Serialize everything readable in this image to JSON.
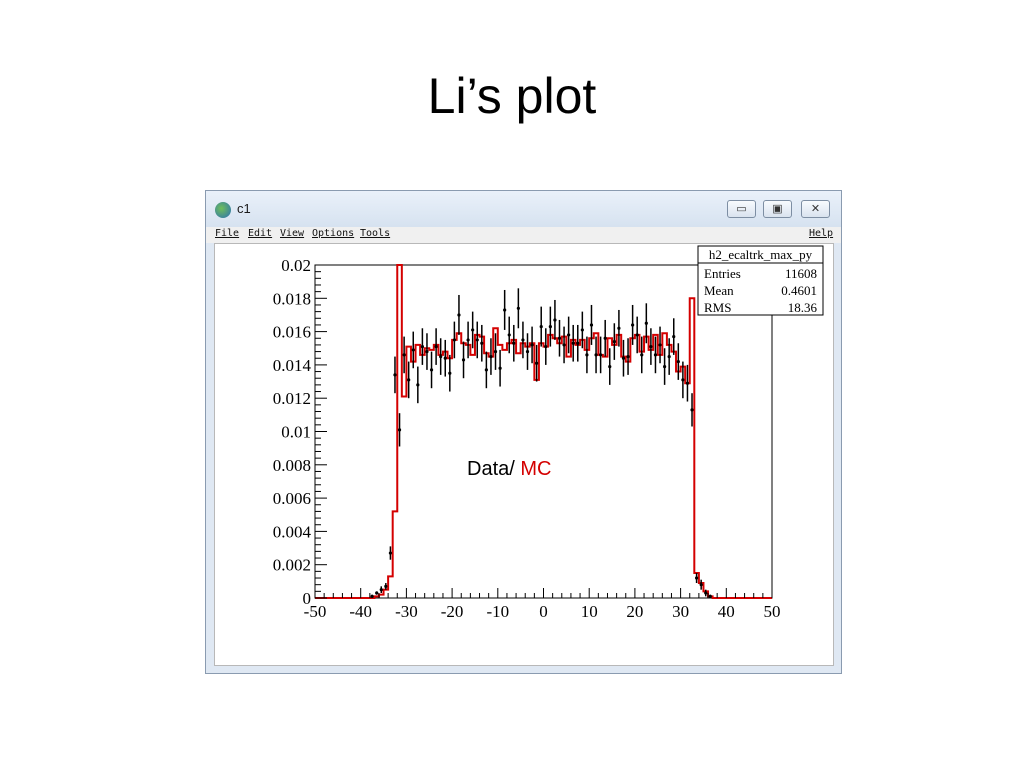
{
  "slide": {
    "title": "Li’s plot"
  },
  "window": {
    "title": "c1",
    "menu": {
      "file": "File",
      "edit": "Edit",
      "view": "View",
      "options": "Options",
      "tools": "Tools",
      "help": "Help"
    },
    "buttons": {
      "minimize": "▭",
      "maximize": "▣",
      "close": "✕"
    }
  },
  "stats_box": {
    "name": "h2_ecaltrk_max_py",
    "rows": [
      {
        "label": "Entries",
        "value": "11608"
      },
      {
        "label": "Mean",
        "value": "0.4601"
      },
      {
        "label": "RMS",
        "value": "18.36"
      }
    ]
  },
  "annotation": {
    "data_label": "Data/",
    "mc_label": "MC"
  },
  "colors": {
    "mc": "#d40000",
    "data": "#000000"
  },
  "chart_data": {
    "type": "line",
    "xlim": [
      -50,
      50
    ],
    "ylim": [
      0,
      0.02
    ],
    "bin_width": 1,
    "x_ticks": [
      "-50",
      "-40",
      "-30",
      "-20",
      "-10",
      "0",
      "10",
      "20",
      "30",
      "40",
      "50"
    ],
    "y_ticks": [
      "0",
      "0.002",
      "0.004",
      "0.006",
      "0.008",
      "0.01",
      "0.012",
      "0.014",
      "0.016",
      "0.018",
      "0.02"
    ],
    "mc_bins": [
      [
        -50,
        0.0
      ],
      [
        -49,
        0.0
      ],
      [
        -48,
        0.0
      ],
      [
        -47,
        0.0
      ],
      [
        -46,
        0.0
      ],
      [
        -45,
        0.0
      ],
      [
        -44,
        0.0
      ],
      [
        -43,
        0.0
      ],
      [
        -42,
        0.0
      ],
      [
        -41,
        0.0
      ],
      [
        -40,
        0.0
      ],
      [
        -39,
        0.0
      ],
      [
        -38,
        0.0
      ],
      [
        -37,
        0.0001
      ],
      [
        -36,
        0.0002
      ],
      [
        -35,
        0.0005
      ],
      [
        -34,
        0.0013
      ],
      [
        -33,
        0.0052
      ],
      [
        -32,
        0.025
      ],
      [
        -31,
        0.0121
      ],
      [
        -30,
        0.0151
      ],
      [
        -29,
        0.0142
      ],
      [
        -28,
        0.0152
      ],
      [
        -27,
        0.0146
      ],
      [
        -26,
        0.015
      ],
      [
        -25,
        0.0149
      ],
      [
        -24,
        0.0152
      ],
      [
        -23,
        0.0146
      ],
      [
        -22,
        0.0148
      ],
      [
        -21,
        0.0144
      ],
      [
        -20,
        0.0155
      ],
      [
        -19,
        0.0159
      ],
      [
        -18,
        0.0153
      ],
      [
        -17,
        0.0152
      ],
      [
        -16,
        0.0146
      ],
      [
        -15,
        0.0158
      ],
      [
        -14,
        0.0157
      ],
      [
        -13,
        0.0147
      ],
      [
        -12,
        0.0145
      ],
      [
        -11,
        0.0162
      ],
      [
        -10,
        0.0152
      ],
      [
        -9,
        0.0149
      ],
      [
        -8,
        0.0153
      ],
      [
        -7,
        0.0155
      ],
      [
        -6,
        0.0147
      ],
      [
        -5,
        0.0153
      ],
      [
        -4,
        0.0151
      ],
      [
        -3,
        0.0153
      ],
      [
        -2,
        0.0131
      ],
      [
        -1,
        0.0153
      ],
      [
        0,
        0.0151
      ],
      [
        1,
        0.0158
      ],
      [
        2,
        0.0156
      ],
      [
        3,
        0.0153
      ],
      [
        4,
        0.0157
      ],
      [
        5,
        0.0145
      ],
      [
        6,
        0.0155
      ],
      [
        7,
        0.0152
      ],
      [
        8,
        0.0155
      ],
      [
        9,
        0.0149
      ],
      [
        10,
        0.0156
      ],
      [
        11,
        0.0159
      ],
      [
        12,
        0.0146
      ],
      [
        13,
        0.0145
      ],
      [
        14,
        0.0156
      ],
      [
        15,
        0.0152
      ],
      [
        16,
        0.0158
      ],
      [
        17,
        0.0145
      ],
      [
        18,
        0.0142
      ],
      [
        19,
        0.0156
      ],
      [
        20,
        0.0158
      ],
      [
        21,
        0.0148
      ],
      [
        22,
        0.0157
      ],
      [
        23,
        0.0149
      ],
      [
        24,
        0.0158
      ],
      [
        25,
        0.0146
      ],
      [
        26,
        0.0159
      ],
      [
        27,
        0.0152
      ],
      [
        28,
        0.0148
      ],
      [
        29,
        0.0136
      ],
      [
        30,
        0.0139
      ],
      [
        31,
        0.0129
      ],
      [
        32,
        0.018
      ],
      [
        33,
        0.0015
      ],
      [
        34,
        0.0009
      ],
      [
        35,
        0.0004
      ],
      [
        36,
        0.0001
      ],
      [
        37,
        0.0
      ],
      [
        38,
        0.0
      ],
      [
        39,
        0.0
      ],
      [
        40,
        0.0
      ],
      [
        41,
        0.0
      ],
      [
        42,
        0.0
      ],
      [
        43,
        0.0
      ],
      [
        44,
        0.0
      ],
      [
        45,
        0.0
      ],
      [
        46,
        0.0
      ],
      [
        47,
        0.0
      ],
      [
        48,
        0.0
      ],
      [
        49,
        0.0
      ]
    ],
    "data_points": [
      {
        "x": -37.5,
        "y": 0.0001,
        "err": 0.0001
      },
      {
        "x": -36.5,
        "y": 0.0003,
        "err": 0.0001
      },
      {
        "x": -35.5,
        "y": 0.0005,
        "err": 0.0002
      },
      {
        "x": -34.5,
        "y": 0.0007,
        "err": 0.0002
      },
      {
        "x": -33.5,
        "y": 0.0027,
        "err": 0.0004
      },
      {
        "x": -32.5,
        "y": 0.0134,
        "err": 0.0011
      },
      {
        "x": -31.5,
        "y": 0.0101,
        "err": 0.001
      },
      {
        "x": -30.5,
        "y": 0.0146,
        "err": 0.0011
      },
      {
        "x": -29.5,
        "y": 0.0131,
        "err": 0.0011
      },
      {
        "x": -28.5,
        "y": 0.0149,
        "err": 0.0011
      },
      {
        "x": -27.5,
        "y": 0.0128,
        "err": 0.0011
      },
      {
        "x": -26.5,
        "y": 0.0151,
        "err": 0.0011
      },
      {
        "x": -25.5,
        "y": 0.0148,
        "err": 0.0011
      },
      {
        "x": -24.5,
        "y": 0.0137,
        "err": 0.0011
      },
      {
        "x": -23.5,
        "y": 0.0151,
        "err": 0.0011
      },
      {
        "x": -22.5,
        "y": 0.0145,
        "err": 0.0011
      },
      {
        "x": -21.5,
        "y": 0.0144,
        "err": 0.0011
      },
      {
        "x": -20.5,
        "y": 0.0135,
        "err": 0.0011
      },
      {
        "x": -19.5,
        "y": 0.0155,
        "err": 0.0011
      },
      {
        "x": -18.5,
        "y": 0.017,
        "err": 0.0012
      },
      {
        "x": -17.5,
        "y": 0.0143,
        "err": 0.0011
      },
      {
        "x": -16.5,
        "y": 0.0155,
        "err": 0.0011
      },
      {
        "x": -15.5,
        "y": 0.0161,
        "err": 0.0011
      },
      {
        "x": -14.5,
        "y": 0.0155,
        "err": 0.0011
      },
      {
        "x": -13.5,
        "y": 0.0153,
        "err": 0.0011
      },
      {
        "x": -12.5,
        "y": 0.0137,
        "err": 0.0011
      },
      {
        "x": -11.5,
        "y": 0.0145,
        "err": 0.0011
      },
      {
        "x": -10.5,
        "y": 0.0148,
        "err": 0.0011
      },
      {
        "x": -9.5,
        "y": 0.0138,
        "err": 0.0011
      },
      {
        "x": -8.5,
        "y": 0.0173,
        "err": 0.0012
      },
      {
        "x": -7.5,
        "y": 0.0158,
        "err": 0.0011
      },
      {
        "x": -6.5,
        "y": 0.0153,
        "err": 0.0011
      },
      {
        "x": -5.5,
        "y": 0.0174,
        "err": 0.0012
      },
      {
        "x": -4.5,
        "y": 0.0155,
        "err": 0.0011
      },
      {
        "x": -3.5,
        "y": 0.0148,
        "err": 0.0011
      },
      {
        "x": -2.5,
        "y": 0.0152,
        "err": 0.0011
      },
      {
        "x": -1.5,
        "y": 0.0141,
        "err": 0.0011
      },
      {
        "x": -0.5,
        "y": 0.0163,
        "err": 0.0012
      },
      {
        "x": 0.5,
        "y": 0.0151,
        "err": 0.0011
      },
      {
        "x": 1.5,
        "y": 0.0163,
        "err": 0.0012
      },
      {
        "x": 2.5,
        "y": 0.0167,
        "err": 0.0012
      },
      {
        "x": 3.5,
        "y": 0.0156,
        "err": 0.0011
      },
      {
        "x": 4.5,
        "y": 0.0152,
        "err": 0.0011
      },
      {
        "x": 5.5,
        "y": 0.0158,
        "err": 0.0011
      },
      {
        "x": 6.5,
        "y": 0.0153,
        "err": 0.0011
      },
      {
        "x": 7.5,
        "y": 0.0153,
        "err": 0.0011
      },
      {
        "x": 8.5,
        "y": 0.0161,
        "err": 0.0011
      },
      {
        "x": 9.5,
        "y": 0.0146,
        "err": 0.0011
      },
      {
        "x": 10.5,
        "y": 0.0164,
        "err": 0.0012
      },
      {
        "x": 11.5,
        "y": 0.0146,
        "err": 0.0011
      },
      {
        "x": 12.5,
        "y": 0.0146,
        "err": 0.0011
      },
      {
        "x": 13.5,
        "y": 0.0156,
        "err": 0.0011
      },
      {
        "x": 14.5,
        "y": 0.0139,
        "err": 0.0011
      },
      {
        "x": 15.5,
        "y": 0.0154,
        "err": 0.0011
      },
      {
        "x": 16.5,
        "y": 0.0162,
        "err": 0.0011
      },
      {
        "x": 17.5,
        "y": 0.0144,
        "err": 0.0011
      },
      {
        "x": 18.5,
        "y": 0.0145,
        "err": 0.0011
      },
      {
        "x": 19.5,
        "y": 0.0164,
        "err": 0.0012
      },
      {
        "x": 20.5,
        "y": 0.0158,
        "err": 0.0011
      },
      {
        "x": 21.5,
        "y": 0.0146,
        "err": 0.0011
      },
      {
        "x": 22.5,
        "y": 0.0165,
        "err": 0.0012
      },
      {
        "x": 23.5,
        "y": 0.0151,
        "err": 0.0011
      },
      {
        "x": 24.5,
        "y": 0.0146,
        "err": 0.0011
      },
      {
        "x": 25.5,
        "y": 0.0152,
        "err": 0.0011
      },
      {
        "x": 26.5,
        "y": 0.0139,
        "err": 0.0011
      },
      {
        "x": 27.5,
        "y": 0.0145,
        "err": 0.0011
      },
      {
        "x": 28.5,
        "y": 0.0157,
        "err": 0.0011
      },
      {
        "x": 29.5,
        "y": 0.0142,
        "err": 0.0011
      },
      {
        "x": 30.5,
        "y": 0.0131,
        "err": 0.0011
      },
      {
        "x": 31.5,
        "y": 0.0129,
        "err": 0.0011
      },
      {
        "x": 32.5,
        "y": 0.0113,
        "err": 0.001
      },
      {
        "x": 33.5,
        "y": 0.0012,
        "err": 0.0003
      },
      {
        "x": 34.5,
        "y": 0.0008,
        "err": 0.0003
      },
      {
        "x": 35.5,
        "y": 0.0003,
        "err": 0.0002
      },
      {
        "x": 36.5,
        "y": 0.0001,
        "err": 0.0001
      }
    ],
    "axes_box": true
  }
}
